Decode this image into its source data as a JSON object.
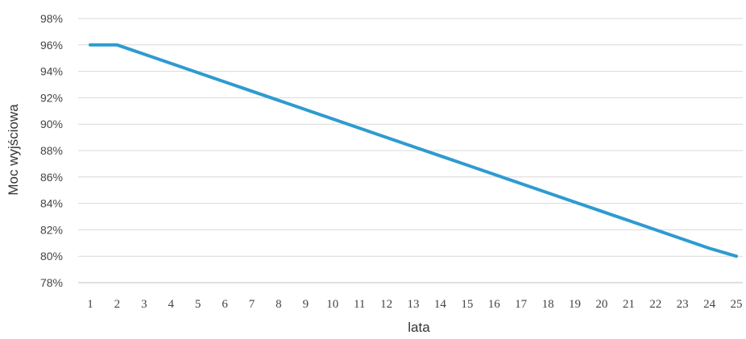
{
  "chart_data": {
    "type": "line",
    "title": "",
    "xlabel": "lata",
    "ylabel": "Moc wyjściowa",
    "x": [
      1,
      2,
      3,
      4,
      5,
      6,
      7,
      8,
      9,
      10,
      11,
      12,
      13,
      14,
      15,
      16,
      17,
      18,
      19,
      20,
      21,
      22,
      23,
      24,
      25
    ],
    "series": [
      {
        "values": [
          96,
          96,
          95.3,
          94.6,
          93.9,
          93.2,
          92.5,
          91.8,
          91.1,
          90.4,
          89.7,
          89.0,
          88.3,
          87.6,
          86.9,
          86.2,
          85.5,
          84.8,
          84.1,
          83.4,
          82.7,
          82.0,
          81.3,
          80.6,
          80.0
        ],
        "color": "#2e9bd0"
      }
    ],
    "ylim": [
      78,
      98
    ],
    "y_ticks": [
      78,
      80,
      82,
      84,
      86,
      88,
      90,
      92,
      94,
      96,
      98
    ],
    "y_tick_labels": [
      "78%",
      "80%",
      "82%",
      "84%",
      "86%",
      "88%",
      "90%",
      "92%",
      "94%",
      "96%",
      "98%"
    ],
    "grid": true,
    "legend": "none",
    "colors": {
      "line": "#2e9bd0",
      "grid": "#d9d9d9",
      "axis": "#bfbfbf",
      "text": "#444444"
    }
  }
}
